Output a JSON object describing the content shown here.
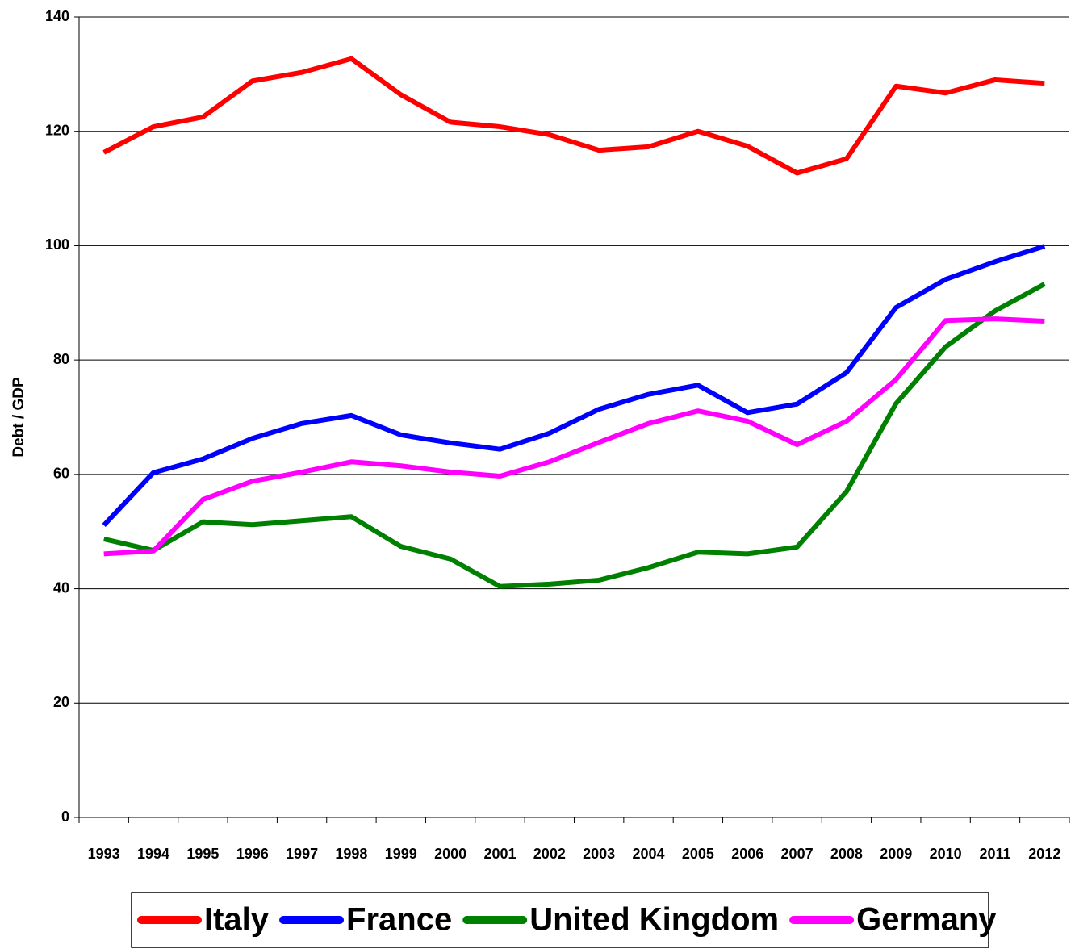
{
  "chart_data": {
    "type": "line",
    "y_label": "Debt / GDP",
    "categories": [
      "1993",
      "1994",
      "1995",
      "1996",
      "1997",
      "1998",
      "1999",
      "2000",
      "2001",
      "2002",
      "2003",
      "2004",
      "2005",
      "2006",
      "2007",
      "2008",
      "2009",
      "2010",
      "2011",
      "2012"
    ],
    "series": [
      {
        "name": "Italy",
        "color": "#ff0000",
        "values": [
          116.3,
          120.8,
          122.5,
          128.8,
          130.3,
          132.7,
          126.4,
          121.6,
          120.8,
          119.4,
          116.7,
          117.3,
          120,
          117.4,
          112.7,
          115.2,
          127.9,
          126.7,
          129,
          128.4
        ]
      },
      {
        "name": "France",
        "color": "#0000ff",
        "values": [
          51.1,
          60.3,
          62.7,
          66.3,
          68.9,
          70.3,
          66.9,
          65.5,
          64.4,
          67.2,
          71.4,
          74,
          75.6,
          70.8,
          72.3,
          77.8,
          89.2,
          94.1,
          97.2,
          99.9
        ]
      },
      {
        "name": "United Kingdom",
        "color": "#008000",
        "values": [
          48.7,
          46.7,
          51.7,
          51.2,
          51.9,
          52.6,
          47.4,
          45.2,
          40.4,
          40.8,
          41.5,
          43.7,
          46.4,
          46.1,
          47.3,
          57,
          72.4,
          82.3,
          88.6,
          93.3
        ]
      },
      {
        "name": "Germany",
        "color": "#ff00ff",
        "values": [
          46.1,
          46.6,
          55.6,
          58.8,
          60.4,
          62.2,
          61.5,
          60.4,
          59.7,
          62.2,
          65.6,
          68.9,
          71.1,
          69.3,
          65.2,
          69.3,
          76.6,
          86.9,
          87.2,
          86.8
        ]
      }
    ],
    "ylim": [
      0,
      140
    ],
    "yticks": [
      0,
      20,
      40,
      60,
      80,
      100,
      120,
      140
    ],
    "grid": true,
    "legend": "bottom"
  }
}
